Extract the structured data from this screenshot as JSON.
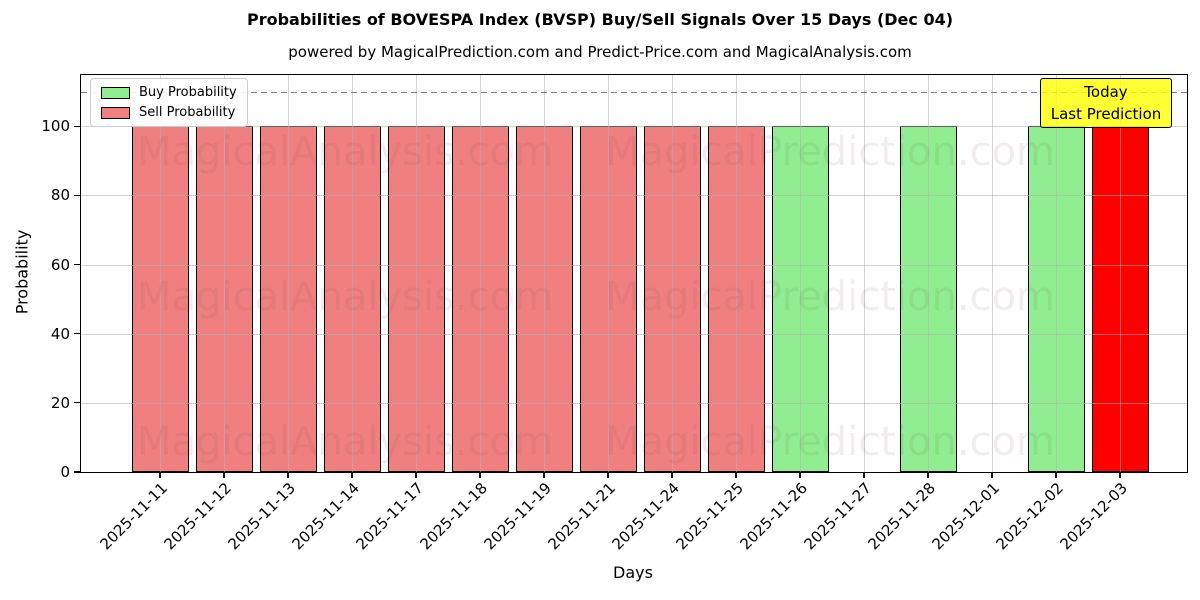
{
  "chart_data": {
    "type": "bar",
    "title": "Probabilities of BOVESPA Index (BVSP) Buy/Sell Signals Over 15 Days (Dec 04)",
    "subtitle": "powered by MagicalPrediction.com and Predict-Price.com and MagicalAnalysis.com",
    "xlabel": "Days",
    "ylabel": "Probability",
    "ylim": [
      0,
      114.8
    ],
    "yticks": [
      0,
      20,
      40,
      60,
      80,
      100
    ],
    "grid": true,
    "dashed_hline": 110,
    "categories": [
      "2025-11-11",
      "2025-11-12",
      "2025-11-13",
      "2025-11-14",
      "2025-11-17",
      "2025-11-18",
      "2025-11-19",
      "2025-11-21",
      "2025-11-24",
      "2025-11-25",
      "2025-11-26",
      "2025-11-27",
      "2025-11-28",
      "2025-12-01",
      "2025-12-02",
      "2025-12-03"
    ],
    "values": [
      100,
      100,
      100,
      100,
      100,
      100,
      100,
      100,
      100,
      100,
      100,
      0,
      100,
      0,
      100,
      100
    ],
    "signals": [
      "sell",
      "sell",
      "sell",
      "sell",
      "sell",
      "sell",
      "sell",
      "sell",
      "sell",
      "sell",
      "buy",
      "none",
      "buy",
      "none",
      "buy",
      "sell-last-prediction"
    ],
    "bar_colors": [
      "#F08080",
      "#F08080",
      "#F08080",
      "#F08080",
      "#F08080",
      "#F08080",
      "#F08080",
      "#F08080",
      "#F08080",
      "#F08080",
      "#90EE90",
      null,
      "#90EE90",
      null,
      "#90EE90",
      "#FF0000"
    ],
    "series": [
      {
        "name": "Buy Probability",
        "color": "#90EE90",
        "values": [
          0,
          0,
          0,
          0,
          0,
          0,
          0,
          0,
          0,
          0,
          100,
          0,
          100,
          0,
          100,
          0
        ]
      },
      {
        "name": "Sell Probability",
        "color": "#F08080",
        "values": [
          100,
          100,
          100,
          100,
          100,
          100,
          100,
          100,
          100,
          100,
          0,
          0,
          0,
          0,
          0,
          0
        ]
      },
      {
        "name": "Last Prediction (Sell)",
        "color": "#FF0000",
        "values": [
          0,
          0,
          0,
          0,
          0,
          0,
          0,
          0,
          0,
          0,
          0,
          0,
          0,
          0,
          0,
          100
        ]
      }
    ],
    "legend": {
      "position": "upper left",
      "items": [
        {
          "label": "Buy Probability",
          "color": "#90EE90"
        },
        {
          "label": "Sell Probability",
          "color": "#F08080"
        }
      ]
    },
    "annotation": {
      "lines": [
        "Today",
        "Last Prediction"
      ],
      "bg_color": "#FFFF00"
    },
    "watermarks": [
      "MagicalAnalysis.com",
      "MagicalPrediction.com"
    ],
    "colors": {
      "buy": "#90EE90",
      "sell": "#F08080",
      "last_prediction": "#FF0000",
      "grid": "#b0b0b0",
      "annotation_bg": "#FFFF00"
    }
  }
}
